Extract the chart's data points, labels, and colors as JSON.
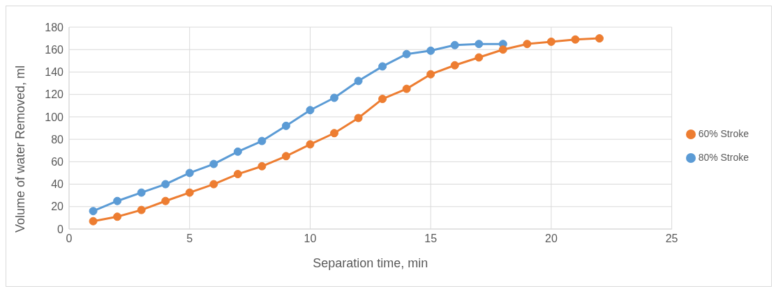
{
  "chart_data": {
    "type": "line",
    "xlabel": "Separation time, min",
    "ylabel": "Volume of water Removed, ml",
    "xlim": [
      0,
      25
    ],
    "xticks": [
      0,
      5,
      10,
      15,
      20,
      25
    ],
    "ylim": [
      0,
      180
    ],
    "yticks": [
      0,
      20,
      40,
      60,
      80,
      100,
      120,
      140,
      160,
      180
    ],
    "grid": true,
    "legend": "right",
    "marker": "circle",
    "line_style": "solid",
    "series": [
      {
        "name": "80% Stroke",
        "color": "#5b9bd5",
        "x": [
          1,
          2,
          3,
          4,
          5,
          6,
          7,
          8,
          9,
          10,
          11,
          12,
          13,
          14,
          15,
          16,
          17,
          18
        ],
        "values": [
          16,
          25,
          32.5,
          40,
          50,
          58,
          69,
          78.5,
          92,
          106,
          117,
          132,
          145,
          156,
          159,
          164,
          165,
          165
        ]
      },
      {
        "name": "60% Stroke",
        "color": "#ed7d31",
        "x": [
          1,
          2,
          3,
          4,
          5,
          6,
          7,
          8,
          9,
          10,
          11,
          12,
          13,
          14,
          15,
          16,
          17,
          18,
          19,
          20,
          21,
          22
        ],
        "values": [
          7,
          11,
          17,
          25,
          32.5,
          40,
          49,
          56,
          65,
          75.5,
          85.5,
          99,
          116,
          125,
          138,
          146,
          153,
          160,
          165,
          167,
          169,
          170
        ]
      }
    ]
  }
}
